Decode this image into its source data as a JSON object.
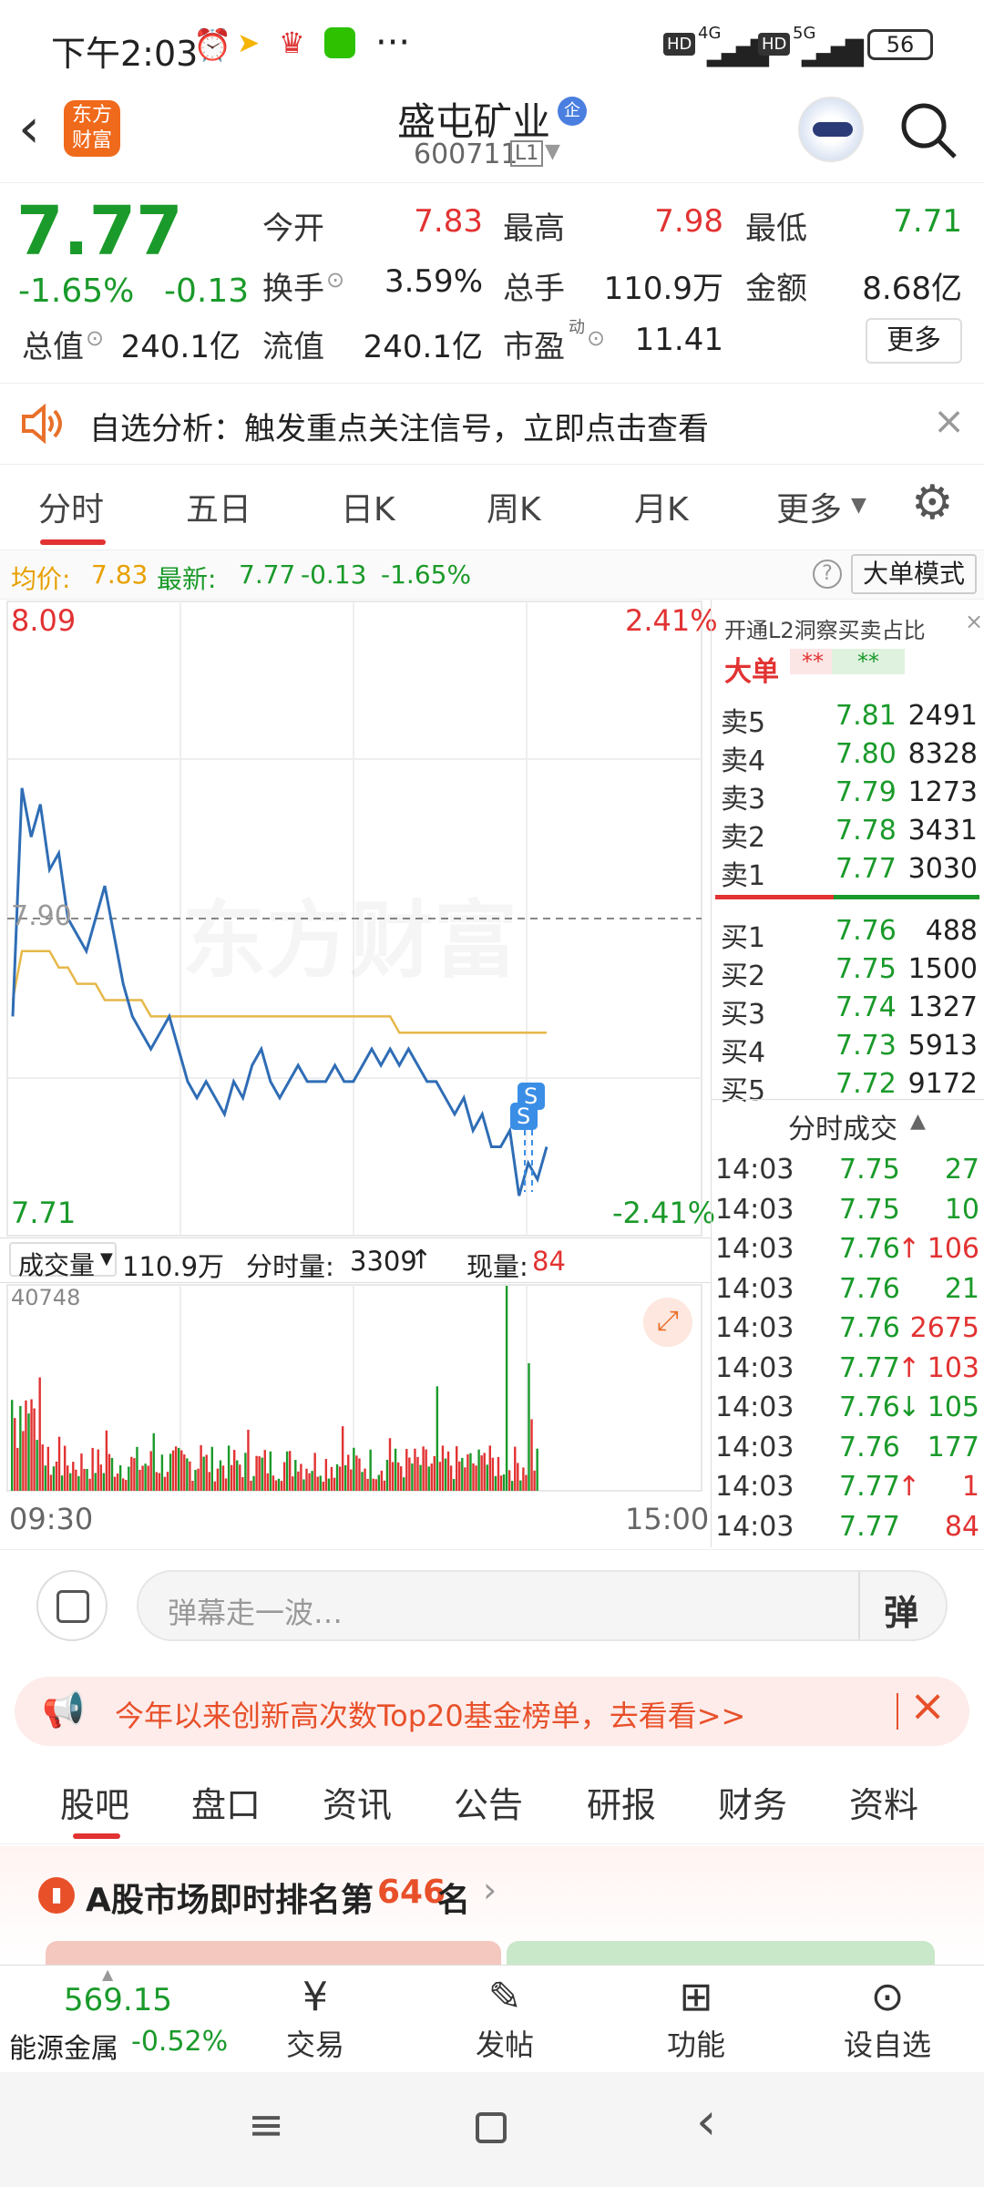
{
  "status": {
    "time": "下午2:03",
    "dots": "···",
    "net1": "4G",
    "net2": "5G",
    "hd": "HD",
    "battery": "56"
  },
  "header": {
    "logo_line1": "东方",
    "logo_line2": "财富",
    "name": "盛屯矿业",
    "badge": "企",
    "code": "600711",
    "level": "L1"
  },
  "quote": {
    "price": "7.77",
    "change_pct": "-1.65%",
    "change": "-0.13",
    "open_label": "今开",
    "open": "7.83",
    "high_label": "最高",
    "high": "7.98",
    "low_label": "最低",
    "low": "7.71",
    "turnover_label": "换手",
    "turnover": "3.59%",
    "volume_label": "总手",
    "volume": "110.9万",
    "amount_label": "金额",
    "amount": "8.68亿",
    "mktcap_label": "总值",
    "mktcap": "240.1亿",
    "float_label": "流值",
    "float": "240.1亿",
    "pe_label": "市盈",
    "pe_sup": "动",
    "pe": "11.41",
    "more": "更多"
  },
  "notice": {
    "text": "自选分析：触发重点关注信号，立即点击查看"
  },
  "ktabs": [
    "分时",
    "五日",
    "日K",
    "周K",
    "月K",
    "更多"
  ],
  "avgbar": {
    "avg_label": "均价:",
    "avg": "7.83",
    "last_label": "最新:",
    "last": "7.77",
    "chg": "-0.13",
    "pct": "-1.65%",
    "bigorder": "大单模式",
    "help": "?"
  },
  "chart_data": {
    "type": "line",
    "y_top": "8.09",
    "y_bottom": "7.71",
    "pct_top": "2.41%",
    "pct_bottom": "-2.41%",
    "prev_close": "7.90",
    "watermark": "东方财富",
    "start_time": "09:30",
    "end_time": "15:00",
    "ylim": [
      7.71,
      8.09
    ],
    "price": [
      7.84,
      7.98,
      7.95,
      7.97,
      7.93,
      7.94,
      7.9,
      7.89,
      7.88,
      7.9,
      7.92,
      7.89,
      7.86,
      7.84,
      7.83,
      7.82,
      7.83,
      7.84,
      7.82,
      7.8,
      7.79,
      7.8,
      7.79,
      7.78,
      7.8,
      7.79,
      7.81,
      7.82,
      7.8,
      7.79,
      7.8,
      7.81,
      7.8,
      7.8,
      7.8,
      7.81,
      7.8,
      7.8,
      7.81,
      7.82,
      7.81,
      7.82,
      7.81,
      7.82,
      7.81,
      7.8,
      7.8,
      7.79,
      7.78,
      7.79,
      7.77,
      7.78,
      7.76,
      7.76,
      7.77,
      7.73,
      7.75,
      7.74,
      7.76
    ],
    "avg": [
      7.85,
      7.88,
      7.88,
      7.88,
      7.88,
      7.87,
      7.87,
      7.86,
      7.86,
      7.86,
      7.85,
      7.85,
      7.85,
      7.85,
      7.85,
      7.84,
      7.84,
      7.84,
      7.84,
      7.84,
      7.84,
      7.84,
      7.84,
      7.84,
      7.84,
      7.84,
      7.84,
      7.84,
      7.84,
      7.84,
      7.84,
      7.84,
      7.84,
      7.84,
      7.84,
      7.84,
      7.84,
      7.84,
      7.84,
      7.84,
      7.84,
      7.84,
      7.83,
      7.83,
      7.83,
      7.83,
      7.83,
      7.83,
      7.83,
      7.83,
      7.83,
      7.83,
      7.83,
      7.83,
      7.83,
      7.83,
      7.83,
      7.83,
      7.83
    ],
    "marker": "S"
  },
  "orderbook": {
    "promo": "开通L2洞察买卖占比",
    "big_label": "大单",
    "big_val1": "**",
    "big_val2": "**",
    "sells": [
      {
        "label": "卖5",
        "price": "7.81",
        "vol": "2491"
      },
      {
        "label": "卖4",
        "price": "7.80",
        "vol": "8328"
      },
      {
        "label": "卖3",
        "price": "7.79",
        "vol": "1273"
      },
      {
        "label": "卖2",
        "price": "7.78",
        "vol": "3431"
      },
      {
        "label": "卖1",
        "price": "7.77",
        "vol": "3030"
      }
    ],
    "buys": [
      {
        "label": "买1",
        "price": "7.76",
        "vol": "488"
      },
      {
        "label": "买2",
        "price": "7.75",
        "vol": "1500"
      },
      {
        "label": "买3",
        "price": "7.74",
        "vol": "1327"
      },
      {
        "label": "买4",
        "price": "7.73",
        "vol": "5913"
      },
      {
        "label": "买5",
        "price": "7.72",
        "vol": "9172"
      }
    ],
    "trades_title": "分时成交",
    "trades": [
      {
        "time": "14:03",
        "price": "7.75",
        "vol": "27",
        "arrow": ""
      },
      {
        "time": "14:03",
        "price": "7.75",
        "vol": "10",
        "arrow": ""
      },
      {
        "time": "14:03",
        "price": "7.76",
        "vol": "106",
        "arrow": "↑"
      },
      {
        "time": "14:03",
        "price": "7.76",
        "vol": "21",
        "arrow": ""
      },
      {
        "time": "14:03",
        "price": "7.76",
        "vol": "2675",
        "arrow": ""
      },
      {
        "time": "14:03",
        "price": "7.77",
        "vol": "103",
        "arrow": "↑"
      },
      {
        "time": "14:03",
        "price": "7.76",
        "vol": "105",
        "arrow": "↓"
      },
      {
        "time": "14:03",
        "price": "7.76",
        "vol": "177",
        "arrow": ""
      },
      {
        "time": "14:03",
        "price": "7.77",
        "vol": "1",
        "arrow": "↑"
      },
      {
        "time": "14:03",
        "price": "7.77",
        "vol": "84",
        "arrow": ""
      }
    ]
  },
  "volume": {
    "label": "成交量",
    "total": "110.9万",
    "fs_label": "分时量:",
    "fs": "3309",
    "fs_arrow": "↑",
    "now_label": "现量:",
    "now": "84",
    "max": "40748"
  },
  "danmu": {
    "placeholder": "弹幕走一波…",
    "btn": "弹"
  },
  "banner": {
    "text": "今年以来创新高次数Top20基金榜单，去看看>>"
  },
  "btabs": [
    "股吧",
    "盘口",
    "资讯",
    "公告",
    "研报",
    "财务",
    "资料"
  ],
  "rank": {
    "pre": "A股市场即时排名第",
    "num": "646",
    "post": "名"
  },
  "toolbar": {
    "index_value": "569.15",
    "index_name": "能源金属",
    "index_pct": "-0.52%",
    "trade": "交易",
    "post": "发帖",
    "func": "功能",
    "fav": "设自选"
  }
}
